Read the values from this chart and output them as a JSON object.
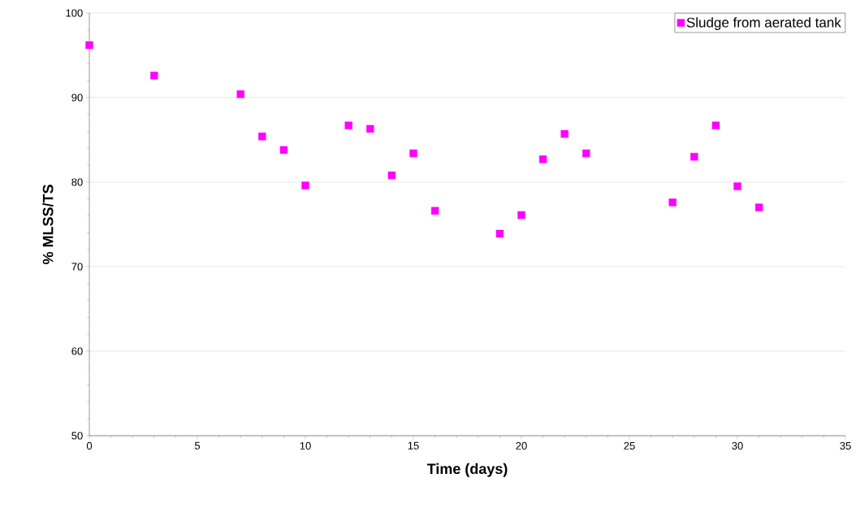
{
  "chart_data": {
    "type": "scatter",
    "xlabel": "Time (days)",
    "ylabel": "% MLSS/TS",
    "x": [
      0,
      3,
      7,
      8,
      9,
      10,
      12,
      13,
      14,
      15,
      16,
      19,
      20,
      21,
      22,
      23,
      27,
      28,
      29,
      30,
      31
    ],
    "series": [
      {
        "name": "Sludge from aerated tank",
        "color": "#ff00ff",
        "values": [
          96.2,
          92.6,
          90.4,
          85.4,
          83.8,
          79.6,
          86.7,
          86.3,
          80.8,
          83.4,
          76.6,
          73.9,
          76.1,
          82.7,
          85.7,
          83.4,
          77.6,
          83.0,
          86.7,
          79.5,
          77.0
        ]
      }
    ],
    "xlim": [
      0,
      35
    ],
    "xticks": [
      0,
      5,
      10,
      15,
      20,
      25,
      30,
      35
    ],
    "ylim": [
      50,
      100
    ],
    "yticks": [
      50,
      60,
      70,
      80,
      90,
      100
    ],
    "grid": "y",
    "legend": "top right",
    "marker": "square"
  }
}
